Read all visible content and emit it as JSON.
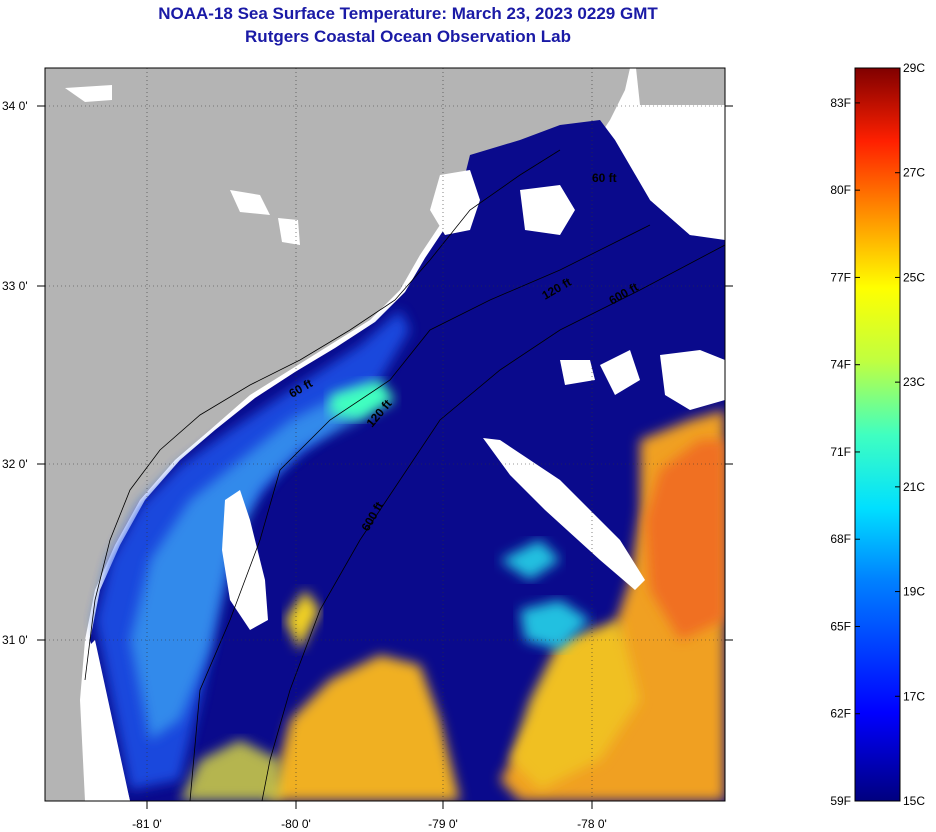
{
  "title": "NOAA-18 Sea Surface Temperature:  March 23, 2023 0229 GMT",
  "subtitle": "Rutgers Coastal Ocean Observation Lab",
  "lat_labels": [
    "34 0'",
    "33 0'",
    "32 0'",
    "31 0'"
  ],
  "lon_labels": [
    "-81 0'",
    "-80 0'",
    "-79 0'",
    "-78 0'"
  ],
  "depth_labels": [
    "60 ft",
    "120 ft",
    "600 ft",
    "60 ft",
    "120 ft",
    "600 ft"
  ],
  "colorbar": {
    "fahrenheit": [
      "83F",
      "80F",
      "77F",
      "74F",
      "71F",
      "68F",
      "65F",
      "62F",
      "59F"
    ],
    "celsius": [
      "29C",
      "27C",
      "25C",
      "23C",
      "21C",
      "19C",
      "17C",
      "15C"
    ],
    "range_c": [
      15,
      29
    ]
  },
  "colors": {
    "land": "#b4b4b4",
    "ocean_cold": "#0a0a8c",
    "title": "#1a1aa6"
  }
}
